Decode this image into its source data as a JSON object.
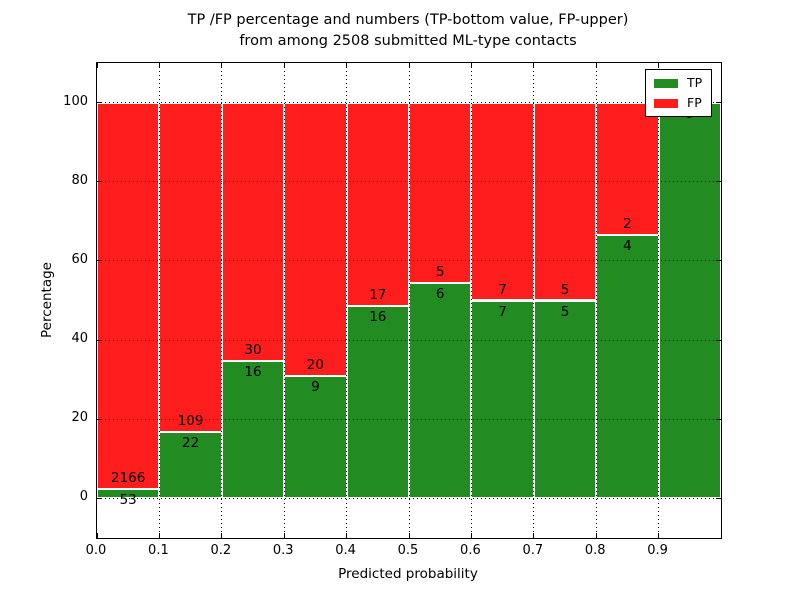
{
  "title": {
    "line1": "TP /FP percentage and numbers (TP-bottom value, FP-upper)",
    "line2": "from among 2508 submitted ML-type contacts"
  },
  "axes": {
    "xlabel": "Predicted probability",
    "ylabel": "Percentage",
    "x_tick_labels": [
      "0.0",
      "0.1",
      "0.2",
      "0.3",
      "0.4",
      "0.5",
      "0.6",
      "0.7",
      "0.8",
      "0.9"
    ],
    "y_tick_labels": [
      "0",
      "20",
      "40",
      "60",
      "80",
      "100"
    ],
    "xlim": [
      0.0,
      1.0
    ],
    "ylim": [
      -10,
      110
    ],
    "grid_style": "dotted"
  },
  "legend": {
    "position": "upper right",
    "items": [
      {
        "label": "TP",
        "color": "#228b22"
      },
      {
        "label": "FP",
        "color": "#fd1d1d"
      }
    ]
  },
  "colors": {
    "tp": "#228b22",
    "fp": "#fd1d1d",
    "bar_edge": "#ffffff",
    "grid": "#000000",
    "background": "#ffffff"
  },
  "chart_data": {
    "type": "bar",
    "stacked": true,
    "orientation": "vertical",
    "total_contacts": 2508,
    "x_bin_edges": [
      0.0,
      0.1,
      0.2,
      0.3,
      0.4,
      0.5,
      0.6,
      0.7,
      0.8,
      0.9,
      1.0
    ],
    "categories": [
      "0.0-0.1",
      "0.1-0.2",
      "0.2-0.3",
      "0.3-0.4",
      "0.4-0.5",
      "0.5-0.6",
      "0.6-0.7",
      "0.7-0.8",
      "0.8-0.9",
      "0.9-1.0"
    ],
    "series": [
      {
        "name": "TP",
        "color": "#228b22",
        "values": [
          53,
          22,
          16,
          9,
          16,
          6,
          7,
          5,
          4,
          9
        ]
      },
      {
        "name": "FP",
        "color": "#fd1d1d",
        "values": [
          2166,
          109,
          30,
          20,
          17,
          5,
          7,
          5,
          2,
          0
        ]
      }
    ],
    "tp_percent": [
      2.4,
      16.8,
      34.8,
      31.0,
      48.5,
      54.5,
      50.0,
      50.0,
      66.7,
      100.0
    ],
    "title": "TP /FP percentage and numbers (TP-bottom value, FP-upper) from among 2508 submitted ML-type contacts",
    "xlabel": "Predicted probability",
    "ylabel": "Percentage",
    "ylim": [
      -10,
      110
    ],
    "legend_position": "upper right"
  }
}
